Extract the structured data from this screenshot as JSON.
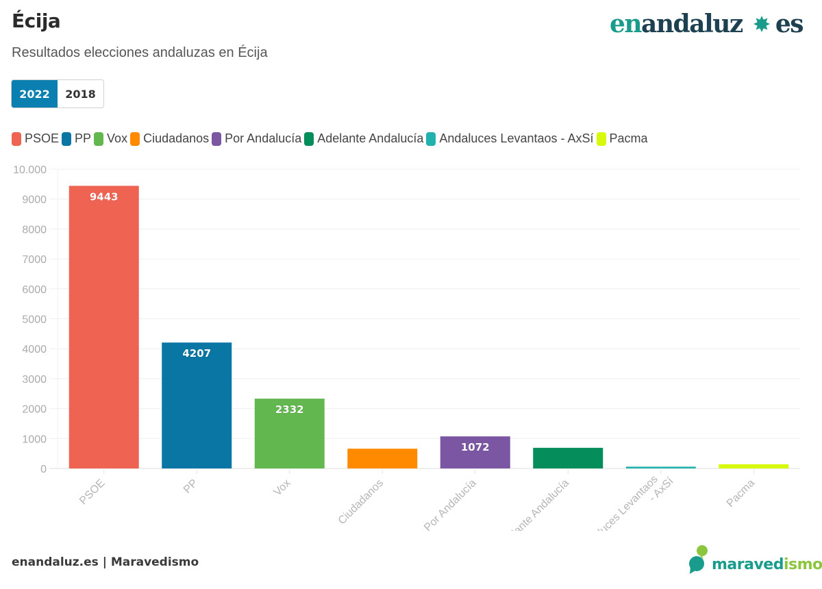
{
  "header": {
    "title": "Écija",
    "subtitle": "Resultados elecciones andaluzas en Écija",
    "brand": {
      "part1": "en",
      "part2": "andaluz",
      "part3": "es",
      "icon": "star-badge-icon"
    }
  },
  "tabs": [
    {
      "label": "2022",
      "active": true
    },
    {
      "label": "2018",
      "active": false
    }
  ],
  "footer": {
    "credit": "enandaluz.es | Maravedismo",
    "logo": {
      "part1": "maraved",
      "part2": "ismo"
    }
  },
  "chart_data": {
    "type": "bar",
    "title": "Écija",
    "subtitle": "Resultados elecciones andaluzas en Écija",
    "xlabel": "",
    "ylabel": "",
    "ylim": [
      0,
      10000
    ],
    "yticks": [
      0,
      1000,
      2000,
      3000,
      4000,
      5000,
      6000,
      7000,
      8000,
      9000,
      10000
    ],
    "ytick_labels": [
      "0",
      "1000",
      "2000",
      "3000",
      "4000",
      "5000",
      "6000",
      "7000",
      "8000",
      "9000",
      "10.000"
    ],
    "grid": true,
    "legend_position": "top-left",
    "categories": [
      "PSOE",
      "PP",
      "Vox",
      "Ciudadanos",
      "Por Andalucía",
      "Adelante Andalucía",
      "Andaluces Levantaos - AxSí",
      "Pacma"
    ],
    "values": [
      9443,
      4207,
      2332,
      660,
      1072,
      690,
      60,
      140
    ],
    "data_labels": [
      "9443",
      "4207",
      "2332",
      "",
      "1072",
      "",
      "",
      ""
    ],
    "colors": [
      "#ee6352",
      "#0a76a4",
      "#62b74f",
      "#ff8a00",
      "#7b57a3",
      "#068d5c",
      "#22b2ad",
      "#d7f90c"
    ],
    "legend": [
      "PSOE",
      "PP",
      "Vox",
      "Ciudadanos",
      "Por Andalucía",
      "Adelante Andalucía",
      "Andaluces Levantaos - AxSí",
      "Pacma"
    ]
  }
}
